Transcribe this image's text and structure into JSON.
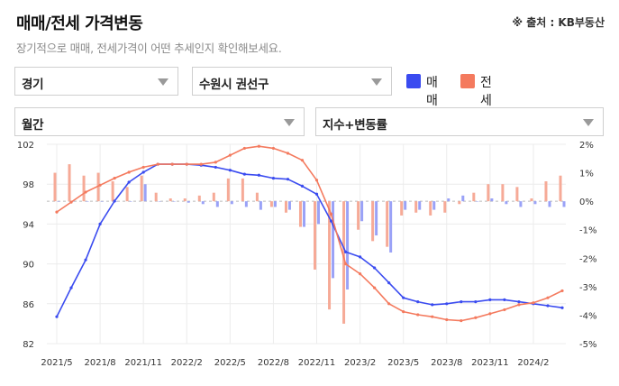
{
  "header": {
    "title": "매매/전세 가격변동",
    "source": "※ 출처 : KB부동산",
    "subtitle": "장기적으로 매매, 전세가격이 어떤 추세인지 확인해보세요."
  },
  "filters": {
    "region": "경기",
    "district": "수원시 권선구",
    "period": "월간",
    "metric": "지수+변동률"
  },
  "legend": [
    {
      "label": "매매",
      "color": "#3a4bf0"
    },
    {
      "label": "전세",
      "color": "#f47a5e"
    }
  ],
  "colors": {
    "sale_line": "#3a4bf0",
    "jeonse_line": "#f47a5e",
    "sale_bar": "#9aa2f7",
    "jeonse_bar": "#f6aa97",
    "grid": "#ececec",
    "baseline": "#bbbbbb"
  },
  "chart_data": {
    "type": "line",
    "title": "",
    "x_ticks": [
      "2021/5",
      "2021/8",
      "2021/11",
      "2022/2",
      "2022/5",
      "2022/8",
      "2022/11",
      "2023/2",
      "2023/5",
      "2023/8",
      "2023/11",
      "2024/2"
    ],
    "x": [
      "2021/5",
      "2021/6",
      "2021/7",
      "2021/8",
      "2021/9",
      "2021/10",
      "2021/11",
      "2021/12",
      "2022/1",
      "2022/2",
      "2022/3",
      "2022/4",
      "2022/5",
      "2022/6",
      "2022/7",
      "2022/8",
      "2022/9",
      "2022/10",
      "2022/11",
      "2022/12",
      "2023/1",
      "2023/2",
      "2023/3",
      "2023/4",
      "2023/5",
      "2023/6",
      "2023/7",
      "2023/8",
      "2023/9",
      "2023/10",
      "2023/11",
      "2023/12",
      "2024/1",
      "2024/2",
      "2024/3",
      "2024/4"
    ],
    "y_left": {
      "ticks": [
        82,
        86,
        90,
        94,
        98,
        102
      ],
      "ylim": [
        82,
        102
      ]
    },
    "y_right": {
      "ticks": [
        "2%",
        "1%",
        "0%",
        "-1%",
        "-2%",
        "-3%",
        "-4%",
        "-5%"
      ],
      "ylim": [
        -5,
        2
      ],
      "unit": "%"
    },
    "series": [
      {
        "name": "매매",
        "kind": "index-line",
        "axis": "left",
        "values": [
          84.7,
          87.6,
          90.4,
          94.0,
          96.3,
          98.2,
          99.2,
          100.0,
          100.0,
          100.0,
          99.9,
          99.7,
          99.4,
          99.0,
          98.9,
          98.6,
          98.5,
          97.8,
          97.0,
          94.3,
          91.2,
          90.7,
          89.6,
          88.1,
          86.6,
          86.2,
          85.9,
          86.0,
          86.2,
          86.2,
          86.4,
          86.4,
          86.2,
          86.0,
          85.8,
          85.6
        ]
      },
      {
        "name": "전세",
        "kind": "index-line",
        "axis": "left",
        "values": [
          95.2,
          96.2,
          97.2,
          97.9,
          98.6,
          99.2,
          99.7,
          100.0,
          100.0,
          100.0,
          100.0,
          100.2,
          100.9,
          101.6,
          101.8,
          101.6,
          101.1,
          100.4,
          98.4,
          95.0,
          90.0,
          89.0,
          87.6,
          86.0,
          85.2,
          84.9,
          84.7,
          84.4,
          84.3,
          84.6,
          85.0,
          85.4,
          85.9,
          86.1,
          86.6,
          87.3
        ]
      },
      {
        "name": "매매",
        "kind": "change-bar",
        "axis": "right",
        "values": [
          0.0,
          0.0,
          0.0,
          0.0,
          0.0,
          0.0,
          0.6,
          0.0,
          0.0,
          -0.05,
          -0.1,
          -0.2,
          -0.1,
          -0.2,
          -0.3,
          -0.2,
          -0.3,
          -0.9,
          -0.8,
          -2.7,
          -3.1,
          -0.7,
          -1.2,
          -1.8,
          -0.3,
          -0.3,
          -0.3,
          0.1,
          0.2,
          0.0,
          0.1,
          -0.1,
          -0.2,
          -0.1,
          -0.2,
          -0.2
        ]
      },
      {
        "name": "전세",
        "kind": "change-bar",
        "axis": "right",
        "values": [
          1.0,
          1.3,
          0.9,
          1.0,
          0.7,
          0.5,
          0.9,
          0.3,
          0.1,
          0.1,
          0.2,
          0.3,
          0.8,
          0.8,
          0.3,
          -0.2,
          -0.4,
          -0.9,
          -2.4,
          -3.8,
          -4.3,
          -1.0,
          -1.4,
          -1.6,
          -0.5,
          -0.4,
          -0.5,
          -0.4,
          -0.1,
          0.3,
          0.6,
          0.6,
          0.5,
          0.1,
          0.7,
          0.9
        ]
      }
    ]
  }
}
